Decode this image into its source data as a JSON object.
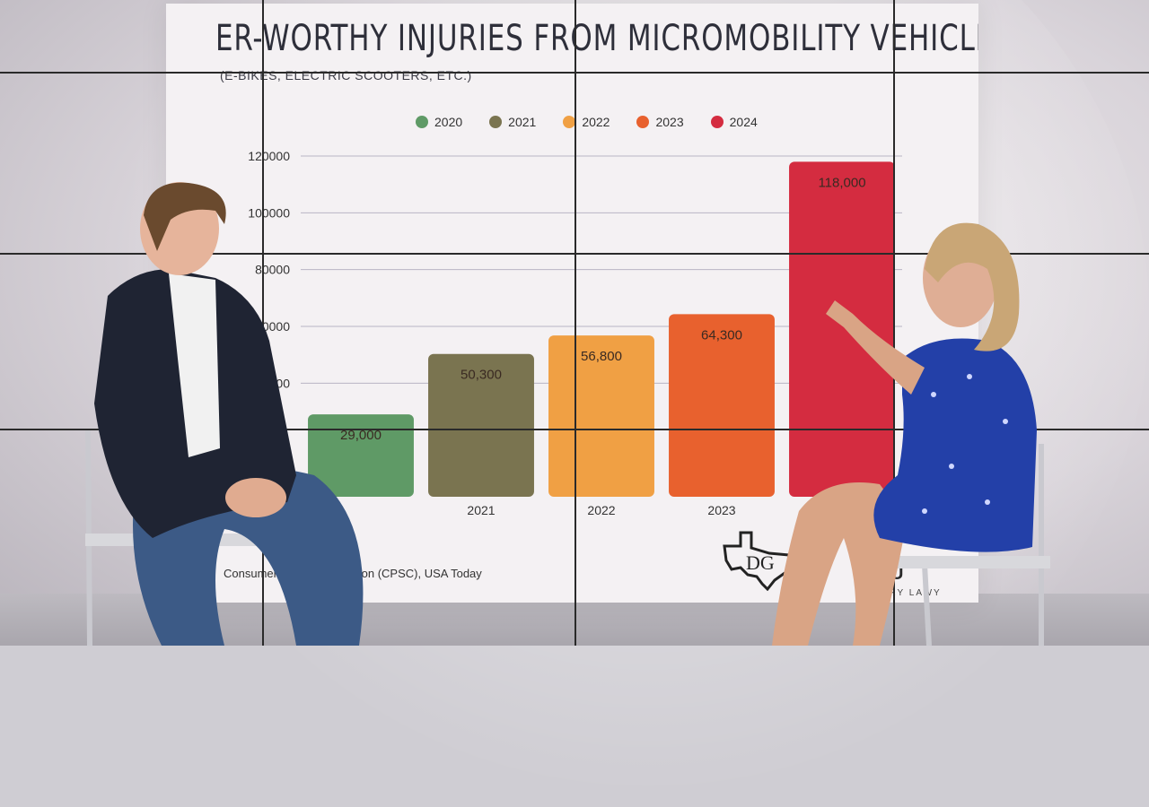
{
  "scene": {
    "title": "ER-WORTHY INJURIES FROM MICROMOBILITY VEHICLES",
    "subtitle": "(E-BIKES, ELECTRIC SCOOTERS, ETC.)",
    "source": "Consumer P     ety Commission (CPSC), USA Today",
    "brand_visible": "ROU",
    "brand_sub": "NJURY LAWY"
  },
  "chart_data": {
    "type": "bar",
    "categories": [
      "2020",
      "2021",
      "2022",
      "2023",
      "2024"
    ],
    "visible_x_labels": [
      "",
      "2021",
      "2022",
      "2023",
      ""
    ],
    "values": [
      29000,
      50300,
      56800,
      64300,
      118000
    ],
    "value_labels": [
      "29,000",
      "50,300",
      "56,800",
      "64,300",
      "118,000"
    ],
    "legend": [
      "2020",
      "2021",
      "2022",
      "2023",
      "2024"
    ],
    "colors": [
      "#5f9a66",
      "#7a7450",
      "#f0a044",
      "#e8612e",
      "#d42c40"
    ],
    "y_ticks_visible": [
      "120000",
      "100000",
      "80000",
      "0000",
      "00"
    ],
    "ylim": [
      0,
      120000
    ],
    "grid": true,
    "legend_position": "top"
  }
}
